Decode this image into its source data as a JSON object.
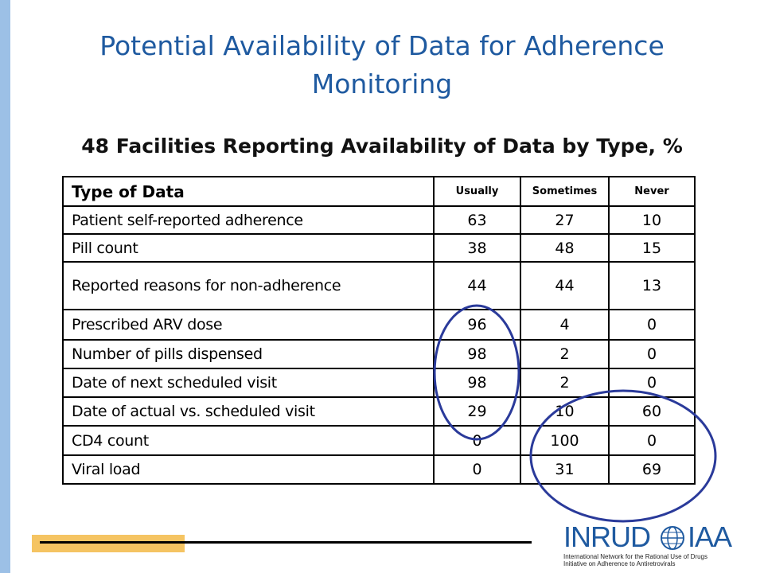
{
  "title": "Potential Availability of Data for Adherence Monitoring",
  "subtitle": "48 Facilities Reporting Availability of Data by Type, %",
  "table": {
    "headers": [
      "Type of Data",
      "Usually",
      "Sometimes",
      "Never"
    ],
    "rows": [
      [
        "Patient self-reported adherence",
        "63",
        "27",
        "10"
      ],
      [
        "Pill count",
        "38",
        "48",
        "15"
      ],
      [
        "Reported reasons for non-adherence",
        "44",
        "44",
        "13"
      ],
      [
        "Prescribed ARV dose",
        "96",
        "4",
        "0"
      ],
      [
        "Number of pills dispensed",
        "98",
        "2",
        "0"
      ],
      [
        "Date of next scheduled visit",
        "98",
        "2",
        "0"
      ],
      [
        "Date of actual vs. scheduled visit",
        "29",
        "10",
        "60"
      ],
      [
        "CD4 count",
        "0",
        "100",
        "0"
      ],
      [
        "Viral load",
        "0",
        "31",
        "69"
      ]
    ]
  },
  "logo": {
    "left": "INRUD",
    "right": "IAA",
    "line1": "International Network for the Rational Use of Drugs",
    "line2": "Initiative on Adherence to Antiretrovirals"
  },
  "colors": {
    "title": "#1f5aa0",
    "highlight_circle": "#2a3a9a",
    "accent_bar": "#9cc0e6",
    "footer_bar": "#f5c462"
  }
}
